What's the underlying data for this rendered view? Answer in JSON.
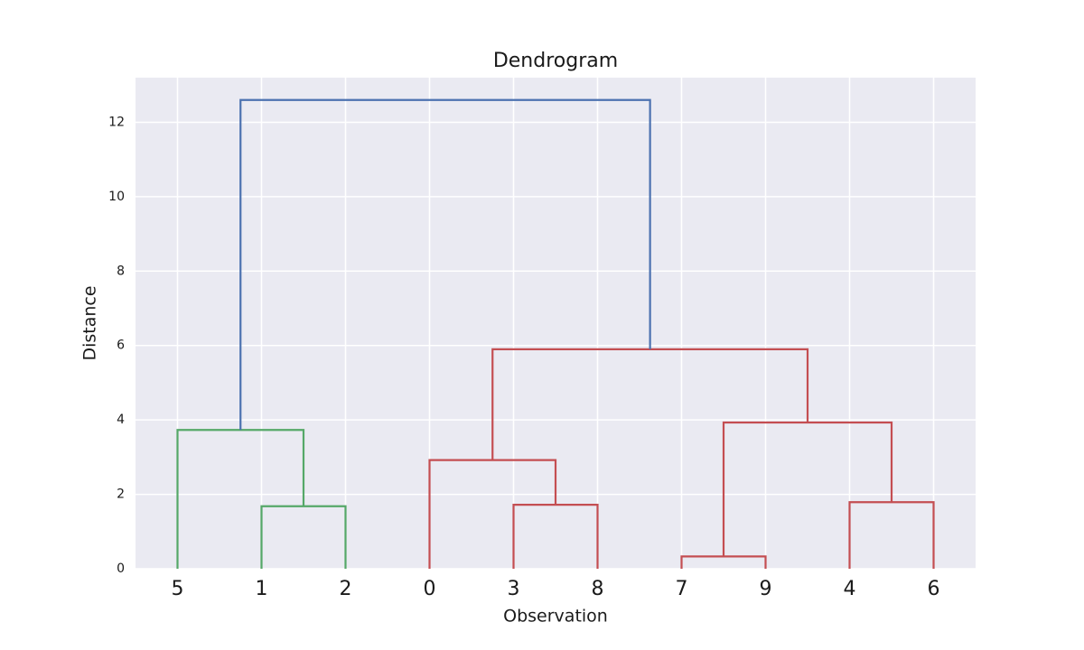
{
  "chart_data": {
    "type": "dendrogram",
    "title": "Dendrogram",
    "x_label": "Observation",
    "y_label": "Distance",
    "categories": [
      "5",
      "1",
      "2",
      "0",
      "3",
      "8",
      "7",
      "9",
      "4",
      "6"
    ],
    "links": [
      {
        "children": [
          1,
          2
        ],
        "height": 1.68,
        "color": "#55a868"
      },
      {
        "children": [
          0,
          10
        ],
        "height": 3.73,
        "color": "#55a868"
      },
      {
        "children": [
          4,
          5
        ],
        "height": 1.72,
        "color": "#c44e52"
      },
      {
        "children": [
          3,
          12
        ],
        "height": 2.92,
        "color": "#c44e52"
      },
      {
        "children": [
          6,
          7
        ],
        "height": 0.33,
        "color": "#c44e52"
      },
      {
        "children": [
          8,
          9
        ],
        "height": 1.79,
        "color": "#c44e52"
      },
      {
        "children": [
          14,
          15
        ],
        "height": 3.93,
        "color": "#c44e52"
      },
      {
        "children": [
          13,
          16
        ],
        "height": 5.9,
        "color": "#c44e52"
      },
      {
        "children": [
          11,
          17
        ],
        "height": 12.6,
        "color": "#4c72b0"
      }
    ],
    "ylim": [
      0,
      13.2
    ],
    "yticks": [
      0,
      2,
      4,
      6,
      8,
      10,
      12
    ],
    "grid": true
  }
}
